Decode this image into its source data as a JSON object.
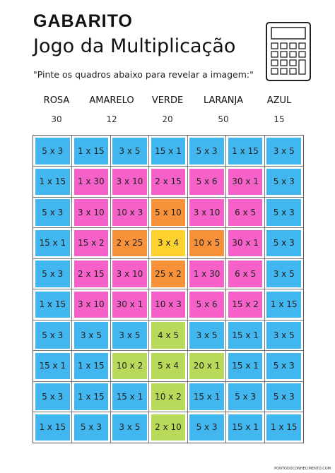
{
  "header": {
    "title": "GABARITO",
    "subtitle": "Jogo da Multiplicação",
    "instruction": "\"Pinte os quadros abaixo para revelar a imagem:\""
  },
  "legend": [
    {
      "label": "ROSA",
      "value": 30,
      "color": "#f561c8"
    },
    {
      "label": "AMARELO",
      "value": 12,
      "color": "#fdd22f"
    },
    {
      "label": "VERDE",
      "value": 20,
      "color": "#b9d95a"
    },
    {
      "label": "LARANJA",
      "value": 50,
      "color": "#f7923b"
    },
    {
      "label": "AZUL",
      "value": 15,
      "color": "#41b6ef"
    }
  ],
  "table": {
    "rows": [
      [
        "5 x 3",
        "1 x 15",
        "3 x 5",
        "15 x 1",
        "5 x 3",
        "1 x 15",
        "3 x 5"
      ],
      [
        "1 x 15",
        "1 x 30",
        "3 x 10",
        "2 x 15",
        "5 x 6",
        "30 x 1",
        "5 x 3"
      ],
      [
        "5 x 3",
        "3 x 10",
        "10 x 3",
        "5 x 10",
        "3 x 10",
        "6 x 5",
        "5 x 3"
      ],
      [
        "15 x 1",
        "15 x 2",
        "2 x 25",
        "3 x 4",
        "10 x 5",
        "30 x 1",
        "5 x 3"
      ],
      [
        "5 x 3",
        "2 x 15",
        "3 x 10",
        "25 x 2",
        "1 x 30",
        "6 x 5",
        "3 x 5"
      ],
      [
        "1 x 15",
        "3 x 10",
        "30 x 1",
        "10 x 3",
        "5 x 6",
        "15 x 2",
        "1 x 15"
      ],
      [
        "5 x 3",
        "3 x 5",
        "3 x 5",
        "4 x 5",
        "3 x 5",
        "15 x 1",
        "3 x 5"
      ],
      [
        "15 x 1",
        "1 x 15",
        "10 x 2",
        "5 x 4",
        "20 x 1",
        "15 x 1",
        "5 x 3"
      ],
      [
        "5 x 3",
        "1 x 15",
        "15 x 1",
        "10 x 2",
        "15 x 1",
        "5 x 3",
        "5 x 3"
      ],
      [
        "1 x 15",
        "5 x 3",
        "3 x 5",
        "2 x 10",
        "5 x 3",
        "15 x 1",
        "1 x 15"
      ]
    ],
    "colors": [
      [
        "#41b6ef",
        "#41b6ef",
        "#41b6ef",
        "#41b6ef",
        "#41b6ef",
        "#41b6ef",
        "#41b6ef"
      ],
      [
        "#41b6ef",
        "#f561c8",
        "#f561c8",
        "#f561c8",
        "#f561c8",
        "#f561c8",
        "#41b6ef"
      ],
      [
        "#41b6ef",
        "#f561c8",
        "#f561c8",
        "#f7923b",
        "#f561c8",
        "#f561c8",
        "#41b6ef"
      ],
      [
        "#41b6ef",
        "#f561c8",
        "#f7923b",
        "#fdd22f",
        "#f7923b",
        "#f561c8",
        "#41b6ef"
      ],
      [
        "#41b6ef",
        "#f561c8",
        "#f561c8",
        "#f7923b",
        "#f561c8",
        "#f561c8",
        "#41b6ef"
      ],
      [
        "#41b6ef",
        "#f561c8",
        "#f561c8",
        "#f561c8",
        "#f561c8",
        "#f561c8",
        "#41b6ef"
      ],
      [
        "#41b6ef",
        "#41b6ef",
        "#41b6ef",
        "#b9d95a",
        "#41b6ef",
        "#41b6ef",
        "#41b6ef"
      ],
      [
        "#41b6ef",
        "#41b6ef",
        "#b9d95a",
        "#b9d95a",
        "#b9d95a",
        "#41b6ef",
        "#41b6ef"
      ],
      [
        "#41b6ef",
        "#41b6ef",
        "#41b6ef",
        "#b9d95a",
        "#41b6ef",
        "#41b6ef",
        "#41b6ef"
      ],
      [
        "#41b6ef",
        "#41b6ef",
        "#41b6ef",
        "#b9d95a",
        "#41b6ef",
        "#41b6ef",
        "#41b6ef"
      ]
    ]
  },
  "footer": "PONTODOCONHECIMENTO.COM"
}
